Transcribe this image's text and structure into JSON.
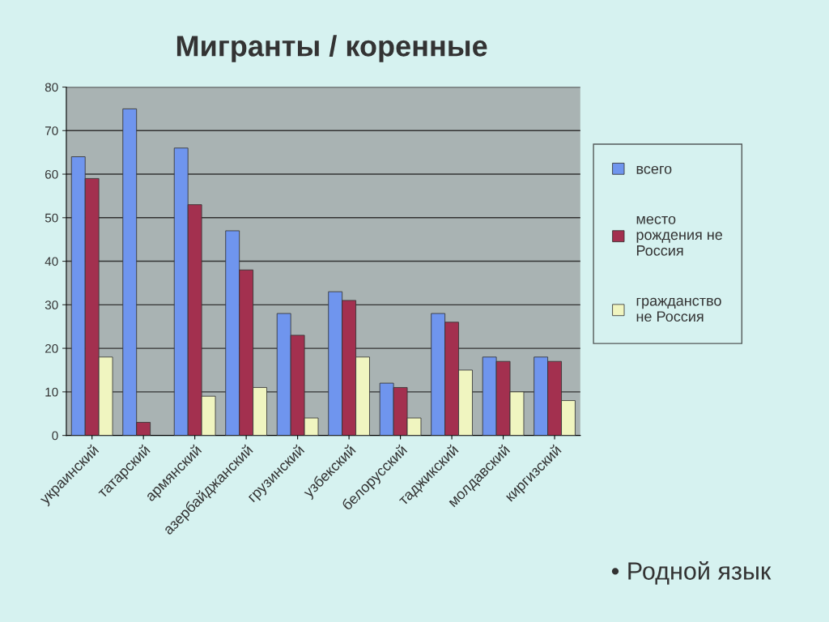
{
  "chart_data": {
    "type": "bar",
    "title": "Мигранты / коренные",
    "categories": [
      "украинский",
      "татарский",
      "армянский",
      "азербайджанский",
      "грузинский",
      "узбекский",
      "белорусский",
      "таджикский",
      "молдавский",
      "киргизский"
    ],
    "series": [
      {
        "name": "всего",
        "color": "#6f95ee",
        "values": [
          64,
          75,
          66,
          47,
          28,
          33,
          12,
          28,
          18,
          18
        ]
      },
      {
        "name": "место\nрождения не\nРоссия",
        "color": "#a3304f",
        "values": [
          59,
          3,
          53,
          38,
          23,
          31,
          11,
          26,
          17,
          17
        ]
      },
      {
        "name": "гражданство\nне Россия",
        "color": "#f0f5c0",
        "values": [
          18,
          null,
          9,
          11,
          4,
          18,
          4,
          15,
          10,
          8
        ]
      }
    ],
    "ylim": [
      0,
      80
    ],
    "yticks": [
      0,
      10,
      20,
      30,
      40,
      50,
      60,
      70,
      80
    ],
    "grid": "y",
    "legend": "right",
    "annotations": [
      "• Родной язык"
    ]
  }
}
